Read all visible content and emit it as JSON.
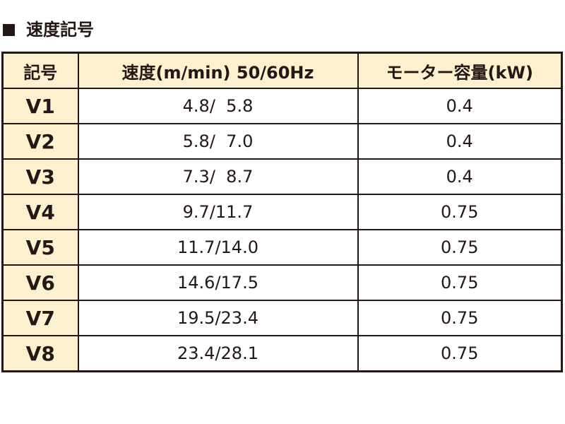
{
  "title": "速度記号",
  "table": {
    "header": [
      "記号",
      "速度(m/min) 50/60Hz",
      "モーター容量(kW)"
    ],
    "rows": [
      [
        "V1",
        "4.8/  5.8",
        "0.4"
      ],
      [
        "V2",
        "5.8/  7.0",
        "0.4"
      ],
      [
        "V3",
        "7.3/  8.7",
        "0.4"
      ],
      [
        "V4",
        "9.7/11.7",
        "0.75"
      ],
      [
        "V5",
        "11.7/14.0",
        "0.75"
      ],
      [
        "V6",
        "14.6/17.5",
        "0.75"
      ],
      [
        "V7",
        "19.5/23.4",
        "0.75"
      ],
      [
        "V8",
        "23.4/28.1",
        "0.75"
      ]
    ]
  }
}
